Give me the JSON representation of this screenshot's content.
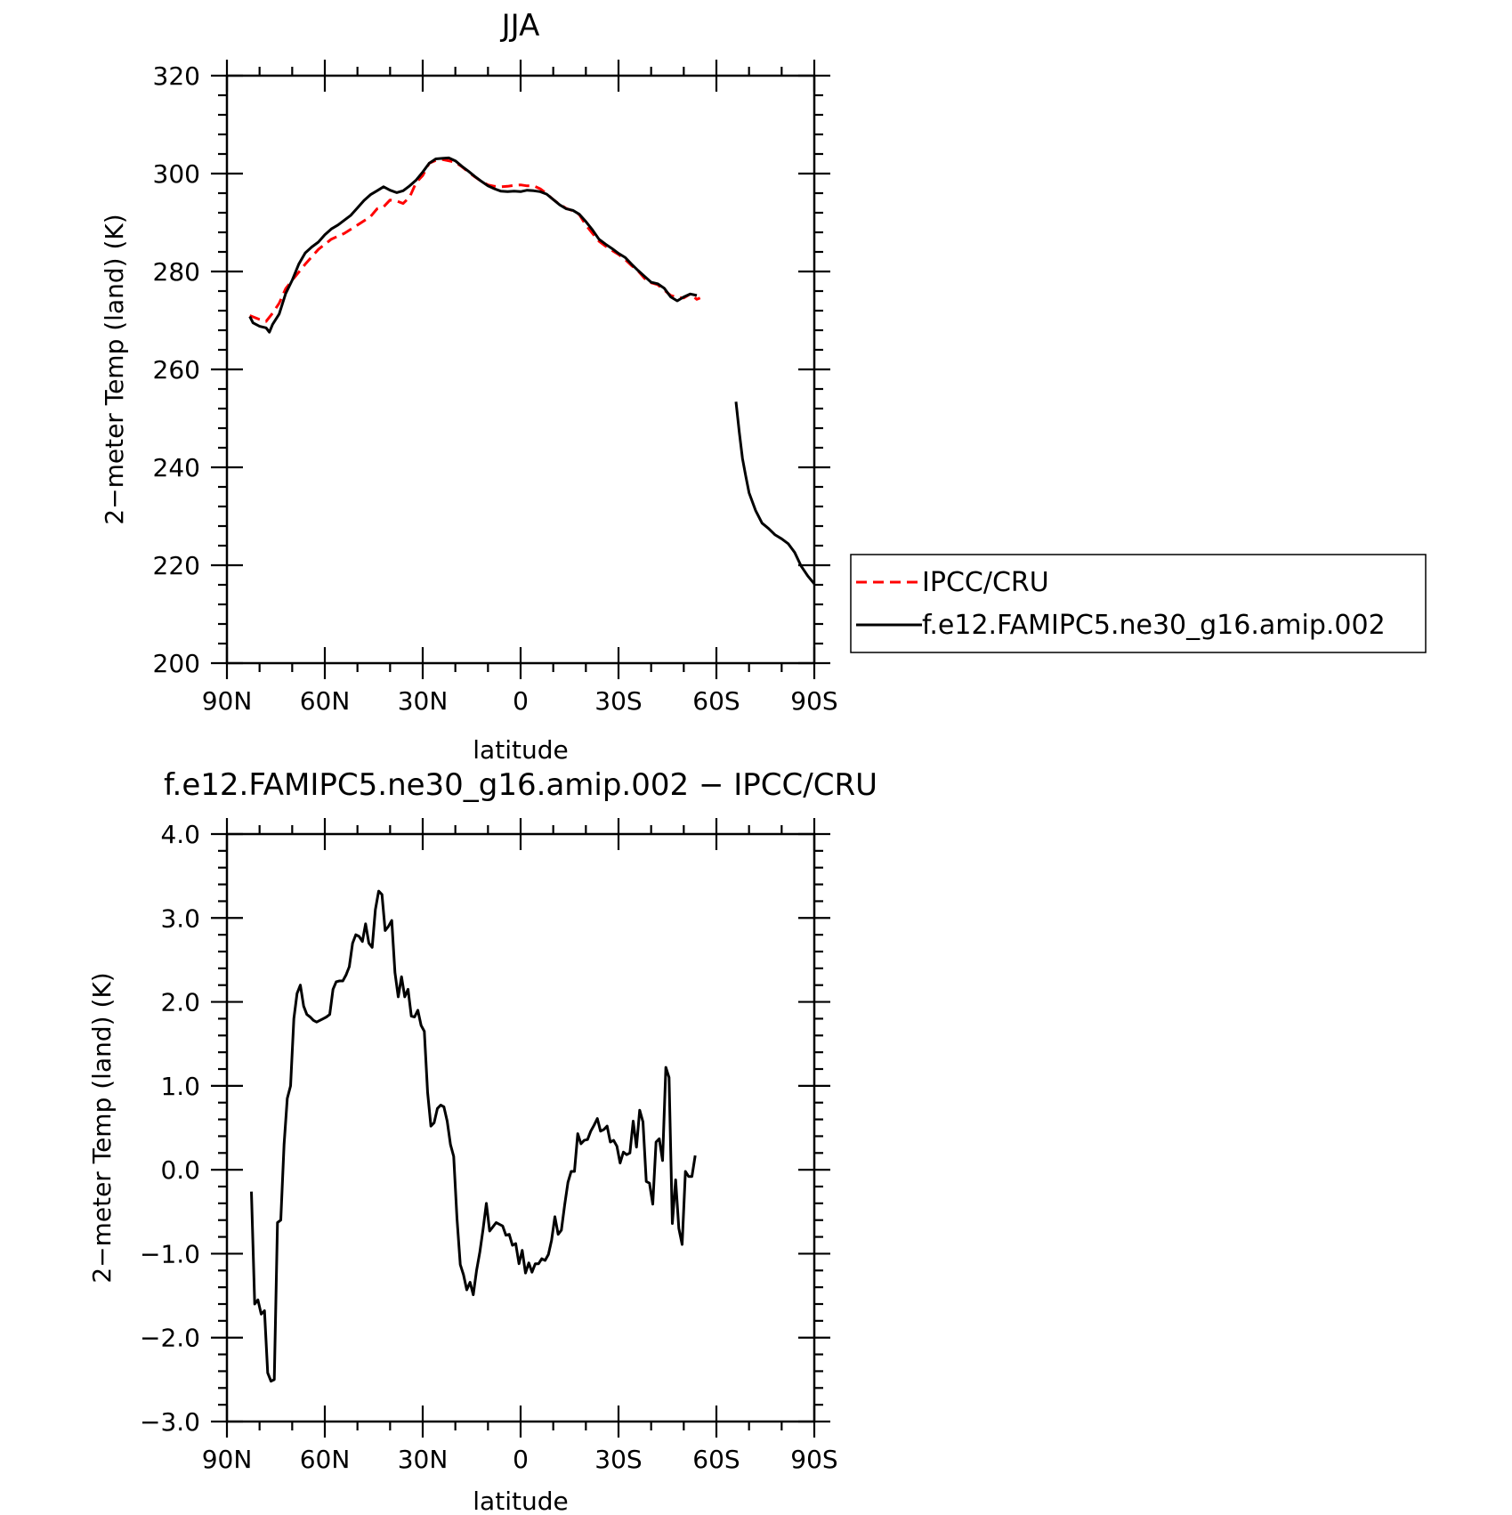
{
  "colors": {
    "obs": "#ff0000",
    "model": "#000000"
  },
  "chart_data": [
    {
      "type": "line",
      "title": "JJA",
      "xlabel": "latitude",
      "ylabel": "2−meter Temp (land) (K)",
      "xlim": [
        90,
        -90
      ],
      "ylim": [
        200,
        320
      ],
      "xticks": [
        90,
        60,
        30,
        0,
        -30,
        -60,
        -90
      ],
      "xtick_labels": [
        "90N",
        "60N",
        "30N",
        "0",
        "30S",
        "60S",
        "90S"
      ],
      "yticks": [
        200,
        220,
        240,
        260,
        280,
        300,
        320
      ],
      "ytick_labels": [
        "200",
        "220",
        "240",
        "260",
        "280",
        "300",
        "320"
      ],
      "grid": false,
      "legend": {
        "placement": "right-of-plot",
        "entries": [
          "IPCC/CRU",
          "f.e12.FAMIPC5.ne30_g16.amip.002"
        ]
      },
      "series": [
        {
          "name": "IPCC/CRU",
          "style": "dashed",
          "color": "#ff0000",
          "x": [
            83,
            80,
            78,
            76,
            74,
            72,
            70,
            66,
            62,
            58,
            54,
            50,
            46,
            44,
            42,
            40,
            38,
            36,
            34,
            32,
            30,
            28,
            26,
            24,
            22,
            20,
            18,
            16,
            14,
            12,
            10,
            8,
            6,
            4,
            2,
            0,
            -2,
            -4,
            -6,
            -8,
            -10,
            -12,
            -14,
            -16,
            -18,
            -20,
            -22,
            -24,
            -26,
            -28,
            -30,
            -32,
            -34,
            -36,
            -38,
            -40,
            -42,
            -44,
            -46,
            -48,
            -50,
            -52,
            -54,
            -55
          ],
          "y": [
            271,
            270.2,
            269.8,
            271.5,
            273.5,
            276.5,
            278.2,
            281.5,
            284.5,
            286.6,
            287.8,
            289.5,
            291.2,
            292.8,
            293.2,
            294.6,
            294.4,
            293.9,
            295.2,
            298.2,
            299.6,
            302.1,
            302.7,
            302.9,
            302.6,
            302.3,
            301.4,
            300.3,
            299.3,
            298.4,
            297.7,
            297.4,
            297.3,
            297.4,
            297.6,
            297.7,
            297.5,
            297.5,
            296.9,
            295.9,
            294.7,
            293.7,
            292.9,
            292.4,
            291.6,
            289.5,
            287.8,
            286.2,
            285.2,
            284.3,
            283.5,
            282.5,
            281.2,
            280.1,
            278.6,
            277.7,
            277.3,
            276.2,
            275.1,
            274.7,
            274.6,
            275.4,
            274.3,
            274.6
          ]
        },
        {
          "name": "f.e12.FAMIPC5.ne30_g16.amip.002",
          "style": "solid",
          "color": "#000000",
          "x": [
            83,
            82,
            80,
            78,
            77,
            76,
            74,
            72,
            70,
            68,
            66,
            64,
            62,
            60,
            58,
            56,
            54,
            52,
            50,
            48,
            46,
            44,
            42,
            40,
            38,
            36,
            34,
            32,
            30,
            28,
            26,
            24,
            22,
            20,
            18,
            16,
            14,
            12,
            10,
            8,
            6,
            4,
            2,
            0,
            -2,
            -4,
            -6,
            -8,
            -10,
            -12,
            -14,
            -16,
            -18,
            -20,
            -22,
            -24,
            -26,
            -28,
            -30,
            -32,
            -34,
            -36,
            -38,
            -40,
            -42,
            -44,
            -46,
            -48,
            -50,
            -52,
            -54,
            null,
            -66,
            -67,
            -68,
            -69,
            -70,
            -72,
            -74,
            -76,
            -78,
            -80,
            -82,
            -84,
            -86,
            -88,
            -90
          ],
          "y": [
            270.8,
            269.5,
            268.8,
            268.5,
            267.6,
            269.2,
            271.3,
            275.5,
            278.2,
            281.5,
            283.8,
            285,
            286,
            287.5,
            288.7,
            289.5,
            290.5,
            291.5,
            293,
            294.5,
            295.7,
            296.5,
            297.3,
            296.6,
            296.1,
            296.5,
            297.5,
            298.7,
            300.3,
            302.1,
            303,
            303.1,
            303.2,
            302.6,
            301.5,
            300.5,
            299.4,
            298.4,
            297.5,
            296.9,
            296.4,
            296.3,
            296.4,
            296.3,
            296.6,
            296.5,
            296.3,
            295.8,
            294.7,
            293.6,
            292.8,
            292.5,
            291.7,
            290.2,
            288.5,
            286.6,
            285.6,
            284.7,
            283.7,
            282.9,
            281.5,
            280.2,
            279,
            277.8,
            277.5,
            276.6,
            274.8,
            274,
            274.8,
            275.4,
            275.1,
            null,
            253.4,
            247.2,
            241.8,
            238.2,
            234.8,
            231.2,
            228.6,
            227.5,
            226.2,
            225.4,
            224.4,
            222.6,
            219.8,
            217.8,
            216.2
          ]
        }
      ]
    },
    {
      "type": "line",
      "title": "f.e12.FAMIPC5.ne30_g16.amip.002 − IPCC/CRU",
      "xlabel": "latitude",
      "ylabel": "2−meter Temp (land) (K)",
      "xlim": [
        90,
        -90
      ],
      "ylim": [
        -3.0,
        4.0
      ],
      "xticks": [
        90,
        60,
        30,
        0,
        -30,
        -60,
        -90
      ],
      "xtick_labels": [
        "90N",
        "60N",
        "30N",
        "0",
        "30S",
        "60S",
        "90S"
      ],
      "yticks": [
        -3,
        -2,
        -1,
        0,
        1,
        2,
        3,
        4
      ],
      "ytick_labels": [
        "−3.0",
        "−2.0",
        "−1.0",
        "0.0",
        "1.0",
        "2.0",
        "3.0",
        "4.0"
      ],
      "grid": false,
      "series": [
        {
          "style": "solid",
          "color": "#000000",
          "x": [
            82.5,
            81.5,
            80.5,
            79.5,
            78.5,
            77.5,
            76.5,
            75.5,
            74.5,
            73.5,
            72.5,
            71.5,
            70.5,
            69.5,
            68.5,
            67.5,
            66.5,
            65.5,
            64.5,
            63.5,
            62.5,
            61.5,
            60.5,
            59.5,
            58.5,
            57.5,
            56.5,
            55.5,
            54.5,
            53.5,
            52.5,
            51.5,
            50.5,
            49.5,
            48.5,
            47.5,
            46.5,
            45.5,
            44.5,
            43.5,
            42.5,
            41.5,
            40.5,
            39.5,
            38.5,
            37.5,
            36.5,
            35.5,
            34.5,
            33.5,
            32.5,
            31.5,
            30.5,
            29.5,
            28.5,
            27.5,
            26.5,
            25.5,
            24.5,
            23.5,
            22.5,
            21.5,
            20.5,
            19.5,
            18.5,
            17.5,
            16.5,
            15.5,
            14.5,
            13.5,
            12.5,
            11.5,
            10.5,
            9.5,
            8.5,
            7.5,
            6.5,
            5.5,
            4.5,
            3.5,
            2.5,
            1.5,
            0.5,
            -0.5,
            -1.5,
            -2.5,
            -3.5,
            -4.5,
            -5.5,
            -6.5,
            -7.5,
            -8.5,
            -9.5,
            -10.5,
            -11.5,
            -12.5,
            -13.5,
            -14.5,
            -15.5,
            -16.5,
            -17.5,
            -18.5,
            -19.5,
            -20.5,
            -21.5,
            -22.5,
            -23.5,
            -24.5,
            -25.5,
            -26.5,
            -27.5,
            -28.5,
            -29.5,
            -30.5,
            -31.5,
            -32.5,
            -33.5,
            -34.5,
            -35.5,
            -36.5,
            -37.5,
            -38.5,
            -39.5,
            -40.5,
            -41.5,
            -42.5,
            -43.5,
            -44.5,
            -45.5,
            -46.5,
            -47.5,
            -48.5,
            -49.5,
            -50.5,
            -51.5,
            -52.5,
            -53.5
          ],
          "y": [
            -0.26,
            -1.6,
            -1.55,
            -1.72,
            -1.68,
            -2.42,
            -2.52,
            -2.5,
            -0.63,
            -0.6,
            0.3,
            0.85,
            1.0,
            1.8,
            2.1,
            2.2,
            1.95,
            1.85,
            1.82,
            1.78,
            1.76,
            1.78,
            1.8,
            1.82,
            1.85,
            2.15,
            2.24,
            2.25,
            2.25,
            2.32,
            2.42,
            2.7,
            2.8,
            2.78,
            2.72,
            2.93,
            2.7,
            2.65,
            3.1,
            3.32,
            3.28,
            2.85,
            2.9,
            2.97,
            2.35,
            2.06,
            2.3,
            2.06,
            2.15,
            1.83,
            1.82,
            1.9,
            1.72,
            1.65,
            0.92,
            0.52,
            0.56,
            0.73,
            0.77,
            0.75,
            0.58,
            0.3,
            0.16,
            -0.58,
            -1.13,
            -1.25,
            -1.43,
            -1.34,
            -1.49,
            -1.2,
            -0.98,
            -0.71,
            -0.4,
            -0.73,
            -0.68,
            -0.63,
            -0.65,
            -0.67,
            -0.78,
            -0.77,
            -0.9,
            -0.88,
            -1.12,
            -0.96,
            -1.23,
            -1.11,
            -1.22,
            -1.12,
            -1.12,
            -1.06,
            -1.08,
            -1.01,
            -0.84,
            -0.56,
            -0.77,
            -0.72,
            -0.42,
            -0.15,
            -0.02,
            -0.02,
            0.43,
            0.31,
            0.35,
            0.36,
            0.46,
            0.53,
            0.61,
            0.46,
            0.48,
            0.52,
            0.33,
            0.35,
            0.28,
            0.08,
            0.21,
            0.18,
            0.2,
            0.58,
            0.27,
            0.71,
            0.57,
            -0.14,
            -0.16,
            -0.41,
            0.33,
            0.37,
            0.11,
            1.22,
            1.1,
            -0.64,
            -0.12,
            -0.7,
            -0.89,
            -0.02,
            -0.08,
            -0.08,
            0.17
          ]
        }
      ]
    }
  ]
}
